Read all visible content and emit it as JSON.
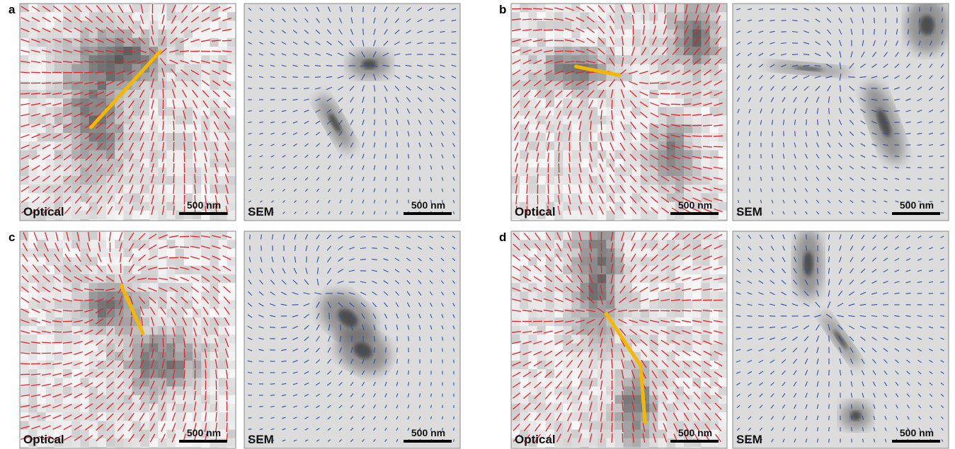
{
  "panels": [
    {
      "label": "a",
      "images": [
        {
          "label": "Optical",
          "scale": "500 nm"
        },
        {
          "label": "SEM",
          "scale": "500 nm"
        }
      ]
    },
    {
      "label": "b",
      "images": [
        {
          "label": "Optical",
          "scale": "500 nm"
        },
        {
          "label": "SEM",
          "scale": "500 nm"
        }
      ]
    },
    {
      "label": "c",
      "images": [
        {
          "label": "Optical",
          "scale": "500 nm"
        },
        {
          "label": "SEM",
          "scale": "500 nm"
        }
      ]
    },
    {
      "label": "d",
      "images": [
        {
          "label": "Optical",
          "scale": "500 nm"
        },
        {
          "label": "SEM",
          "scale": "500 nm"
        }
      ]
    }
  ]
}
